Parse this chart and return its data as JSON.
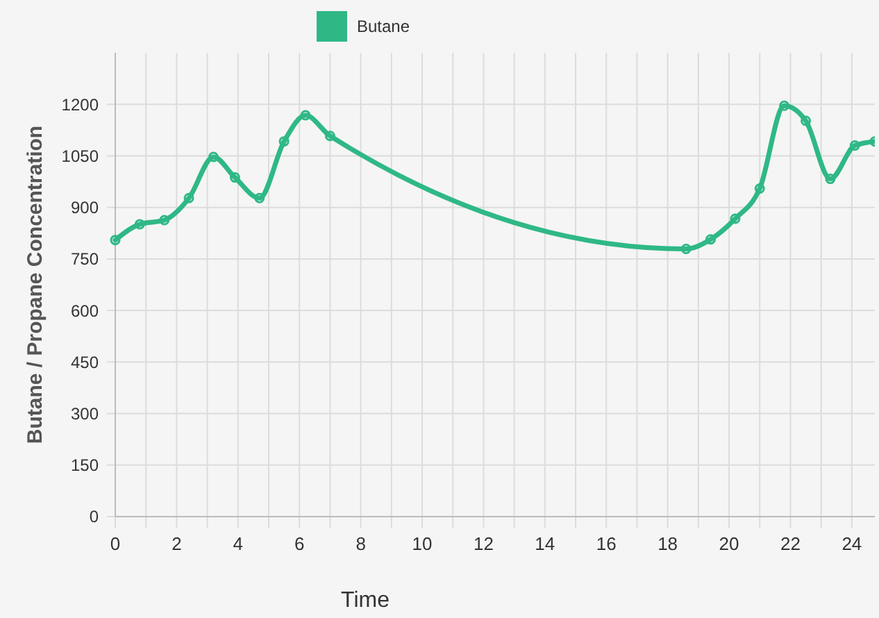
{
  "chart_data": {
    "type": "line",
    "xlabel": "Time",
    "ylabel": "Butane / Propane Concentration",
    "xlim": [
      0,
      24.75
    ],
    "xticks": [
      0,
      2,
      4,
      6,
      8,
      10,
      12,
      14,
      16,
      18,
      20,
      22,
      24
    ],
    "ylim": [
      0,
      1350
    ],
    "yticks": [
      0,
      150,
      300,
      450,
      600,
      750,
      900,
      1050,
      1200
    ],
    "grid": true,
    "legend": "top",
    "marker": "circle",
    "line_style": "solid",
    "series": [
      {
        "name": "Butane",
        "color": "#2fb886",
        "x": [
          0,
          0.8,
          1.6,
          2.4,
          3.2,
          3.9,
          4.7,
          5.5,
          6.2,
          7.0,
          18.6,
          19.4,
          20.2,
          21.0,
          21.8,
          22.5,
          23.3,
          24.1,
          24.75
        ],
        "values": [
          805,
          851,
          863,
          927,
          1047,
          987,
          927,
          1092,
          1168,
          1108,
          779,
          807,
          867,
          955,
          1196,
          1152,
          983,
          1080,
          1092
        ]
      }
    ]
  }
}
